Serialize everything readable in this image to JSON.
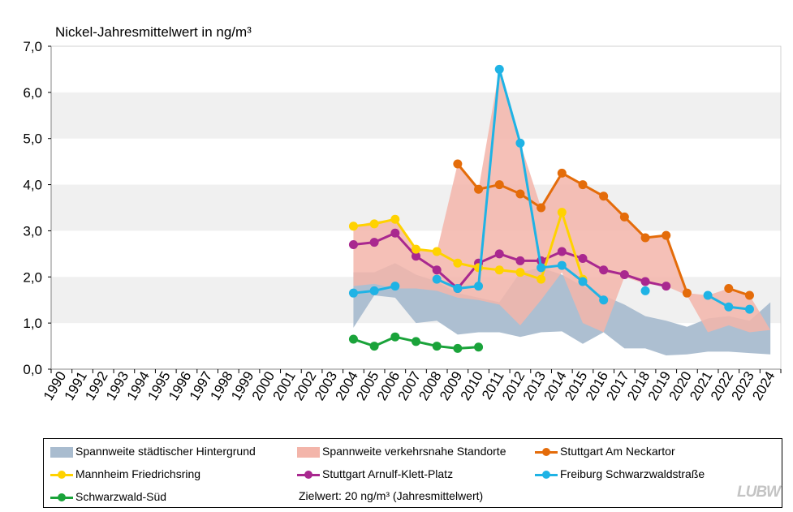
{
  "chart_data": {
    "type": "line",
    "title": "Nickel-Jahresmittelwert  in ng/m³",
    "xlabel": "",
    "ylabel": "",
    "ylim": [
      0,
      7
    ],
    "yticks": [
      "0,0",
      "1,0",
      "2,0",
      "3,0",
      "4,0",
      "5,0",
      "6,0",
      "7,0"
    ],
    "categories": [
      "1990",
      "1991",
      "1992",
      "1993",
      "1994",
      "1995",
      "1996",
      "1997",
      "1998",
      "1999",
      "2000",
      "2001",
      "2002",
      "2003",
      "2004",
      "2005",
      "2006",
      "2007",
      "2008",
      "2009",
      "2010",
      "2011",
      "2012",
      "2013",
      "2014",
      "2015",
      "2016",
      "2017",
      "2018",
      "2019",
      "2020",
      "2021",
      "2022",
      "2023",
      "2024"
    ],
    "bands": [
      {
        "name": "Spannweite städtischer Hintergrund",
        "color": "#a9bccf",
        "x": [
          2004,
          2005,
          2006,
          2007,
          2008,
          2009,
          2010,
          2011,
          2012,
          2013,
          2014,
          2015,
          2016,
          2017,
          2018,
          2019,
          2020,
          2021,
          2022,
          2023,
          2024
        ],
        "low": [
          0.9,
          1.6,
          1.55,
          1.0,
          1.05,
          0.75,
          0.8,
          0.8,
          0.7,
          0.8,
          0.82,
          0.55,
          0.8,
          0.45,
          0.45,
          0.3,
          0.32,
          0.38,
          0.38,
          0.35,
          0.32
        ],
        "high": [
          2.1,
          2.1,
          2.3,
          2.05,
          1.9,
          1.65,
          1.55,
          1.45,
          2.1,
          2.2,
          2.05,
          1.8,
          1.6,
          1.4,
          1.15,
          1.05,
          0.92,
          1.1,
          1.15,
          1.05,
          1.45
        ]
      },
      {
        "name": "Spannweite verkehrsnahe Standorte",
        "color": "#f3b5aa",
        "x": [
          2004,
          2005,
          2006,
          2007,
          2008,
          2009,
          2010,
          2011,
          2012,
          2013,
          2014,
          2015,
          2016,
          2017,
          2018,
          2019,
          2020,
          2021,
          2022,
          2023,
          2024
        ],
        "low": [
          1.8,
          1.85,
          1.75,
          1.75,
          1.7,
          1.55,
          1.5,
          1.4,
          0.95,
          1.5,
          2.1,
          1.0,
          0.8,
          2.0,
          1.85,
          1.8,
          1.6,
          0.8,
          0.95,
          0.8,
          0.85
        ],
        "high": [
          3.1,
          3.2,
          3.25,
          2.6,
          2.55,
          4.45,
          3.9,
          6.5,
          4.9,
          3.5,
          4.25,
          4.0,
          3.75,
          3.3,
          2.85,
          2.9,
          1.65,
          1.6,
          1.75,
          1.6,
          0.85
        ]
      }
    ],
    "series": [
      {
        "name": "Stuttgart Am Neckartor",
        "color": "#e46c0a",
        "x": [
          2009,
          2010,
          2011,
          2012,
          2013,
          2014,
          2015,
          2016,
          2017,
          2018,
          2019,
          2020,
          2021,
          2022,
          2023
        ],
        "values": [
          4.45,
          3.9,
          4.0,
          3.8,
          3.5,
          4.25,
          4.0,
          3.75,
          3.3,
          2.85,
          2.9,
          1.65,
          null,
          1.75,
          1.6
        ]
      },
      {
        "name": "Mannheim Friedrichsring",
        "color": "#ffd200",
        "x": [
          2004,
          2005,
          2006,
          2007,
          2008,
          2009,
          2010,
          2011,
          2012,
          2013,
          2014,
          2015
        ],
        "values": [
          3.1,
          3.15,
          3.25,
          2.6,
          2.55,
          2.3,
          2.2,
          2.15,
          2.1,
          1.95,
          3.4,
          1.95
        ]
      },
      {
        "name": "Stuttgart Arnulf-Klett-Platz",
        "color": "#a9288f",
        "x": [
          2004,
          2005,
          2006,
          2007,
          2008,
          2009,
          2010,
          2011,
          2012,
          2013,
          2014,
          2015,
          2016,
          2017,
          2018,
          2019
        ],
        "values": [
          2.7,
          2.75,
          2.95,
          2.45,
          2.15,
          1.75,
          2.3,
          2.5,
          2.35,
          2.35,
          2.55,
          2.4,
          2.15,
          2.05,
          1.9,
          1.8
        ]
      },
      {
        "name": "Freiburg Schwarzwaldstraße",
        "color": "#1fb3e5",
        "x": [
          2004,
          2005,
          2006,
          2007,
          2008,
          2009,
          2010,
          2011,
          2012,
          2013,
          2014,
          2015,
          2016,
          2017,
          2018,
          2019,
          2020,
          2021,
          2022,
          2023
        ],
        "values": [
          1.65,
          1.7,
          1.8,
          null,
          1.95,
          1.75,
          1.8,
          6.5,
          4.9,
          2.2,
          2.25,
          1.9,
          1.5,
          null,
          1.7,
          null,
          null,
          1.6,
          1.35,
          1.3
        ]
      },
      {
        "name": "Schwarzwald-Süd",
        "color": "#1aa33a",
        "x": [
          2004,
          2005,
          2006,
          2007,
          2008,
          2009,
          2010
        ],
        "values": [
          0.65,
          0.5,
          0.7,
          0.6,
          0.5,
          0.45,
          0.48
        ]
      }
    ]
  },
  "legend": {
    "hintergrund": "Spannweite städtischer Hintergrund",
    "verkehr": "Spannweite verkehrsnahe Standorte",
    "neckartor": "Stuttgart Am Neckartor",
    "mannheim": "Mannheim Friedrichsring",
    "arnulf": "Stuttgart Arnulf-Klett-Platz",
    "freiburg": "Freiburg Schwarzwaldstraße",
    "schwarzwald": "Schwarzwald-Süd",
    "zielwert": "Zielwert:  20 ng/m³ (Jahresmittelwert)"
  },
  "logo": "LUBW"
}
